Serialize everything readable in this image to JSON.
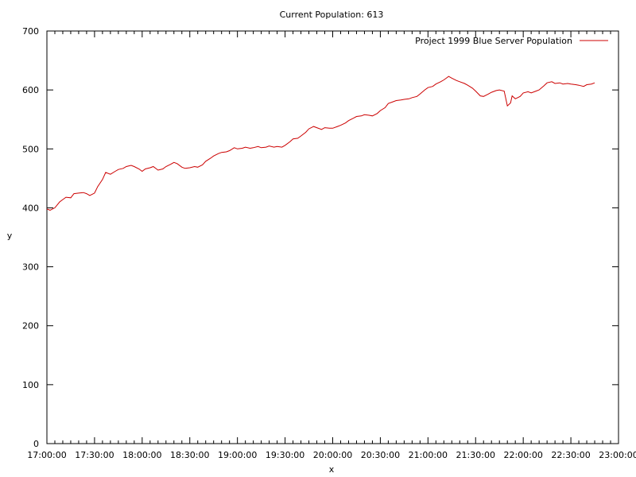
{
  "chart_data": {
    "type": "line",
    "title": "Current Population: 613",
    "xlabel": "x",
    "ylabel": "y",
    "xlim": [
      "17:00:00",
      "23:00:00"
    ],
    "ylim": [
      0,
      700
    ],
    "grid": false,
    "legend_position": "top-right",
    "line_color": "#cc0000",
    "x_tick_labels": [
      "17:00:00",
      "17:30:00",
      "18:00:00",
      "18:30:00",
      "19:00:00",
      "19:30:00",
      "20:00:00",
      "20:30:00",
      "21:00:00",
      "21:30:00",
      "22:00:00",
      "22:30:00",
      "23:00:00"
    ],
    "y_tick_labels": [
      "0",
      "100",
      "200",
      "300",
      "400",
      "500",
      "600",
      "700"
    ],
    "series": [
      {
        "name": "Project 1999 Blue Server Population",
        "points": [
          [
            "17:00:00",
            398
          ],
          [
            "17:02:00",
            396
          ],
          [
            "17:05:00",
            400
          ],
          [
            "17:08:00",
            410
          ],
          [
            "17:10:00",
            414
          ],
          [
            "17:12:00",
            418
          ],
          [
            "17:15:00",
            417
          ],
          [
            "17:17:00",
            424
          ],
          [
            "17:20:00",
            425
          ],
          [
            "17:23:00",
            426
          ],
          [
            "17:25:00",
            424
          ],
          [
            "17:27:00",
            421
          ],
          [
            "17:30:00",
            425
          ],
          [
            "17:32:00",
            436
          ],
          [
            "17:35:00",
            448
          ],
          [
            "17:37:00",
            460
          ],
          [
            "17:40:00",
            457
          ],
          [
            "17:43:00",
            462
          ],
          [
            "17:45:00",
            465
          ],
          [
            "17:48:00",
            467
          ],
          [
            "17:50:00",
            470
          ],
          [
            "17:53:00",
            472
          ],
          [
            "17:55:00",
            470
          ],
          [
            "17:58:00",
            466
          ],
          [
            "18:00:00",
            462
          ],
          [
            "18:02:00",
            466
          ],
          [
            "18:05:00",
            468
          ],
          [
            "18:07:00",
            470
          ],
          [
            "18:10:00",
            464
          ],
          [
            "18:13:00",
            466
          ],
          [
            "18:15:00",
            470
          ],
          [
            "18:18:00",
            474
          ],
          [
            "18:20:00",
            477
          ],
          [
            "18:22:00",
            475
          ],
          [
            "18:25:00",
            469
          ],
          [
            "18:27:00",
            467
          ],
          [
            "18:30:00",
            468
          ],
          [
            "18:33:00",
            470
          ],
          [
            "18:35:00",
            469
          ],
          [
            "18:38:00",
            473
          ],
          [
            "18:40:00",
            479
          ],
          [
            "18:43:00",
            484
          ],
          [
            "18:45:00",
            488
          ],
          [
            "18:48:00",
            492
          ],
          [
            "18:50:00",
            494
          ],
          [
            "18:53:00",
            495
          ],
          [
            "18:55:00",
            497
          ],
          [
            "18:58:00",
            502
          ],
          [
            "19:00:00",
            500
          ],
          [
            "19:03:00",
            501
          ],
          [
            "19:05:00",
            503
          ],
          [
            "19:08:00",
            501
          ],
          [
            "19:10:00",
            502
          ],
          [
            "19:13:00",
            504
          ],
          [
            "19:15:00",
            502
          ],
          [
            "19:18:00",
            503
          ],
          [
            "19:20:00",
            505
          ],
          [
            "19:23:00",
            503
          ],
          [
            "19:25:00",
            504
          ],
          [
            "19:28:00",
            503
          ],
          [
            "19:30:00",
            506
          ],
          [
            "19:33:00",
            512
          ],
          [
            "19:35:00",
            517
          ],
          [
            "19:38:00",
            518
          ],
          [
            "19:40:00",
            522
          ],
          [
            "19:43:00",
            528
          ],
          [
            "19:45:00",
            534
          ],
          [
            "19:48:00",
            538
          ],
          [
            "19:50:00",
            536
          ],
          [
            "19:53:00",
            533
          ],
          [
            "19:55:00",
            536
          ],
          [
            "19:58:00",
            535
          ],
          [
            "20:00:00",
            535
          ],
          [
            "20:03:00",
            538
          ],
          [
            "20:05:00",
            540
          ],
          [
            "20:08:00",
            544
          ],
          [
            "20:10:00",
            548
          ],
          [
            "20:13:00",
            552
          ],
          [
            "20:15:00",
            555
          ],
          [
            "20:18:00",
            556
          ],
          [
            "20:20:00",
            558
          ],
          [
            "20:23:00",
            557
          ],
          [
            "20:25:00",
            556
          ],
          [
            "20:28:00",
            560
          ],
          [
            "20:30:00",
            565
          ],
          [
            "20:33:00",
            570
          ],
          [
            "20:35:00",
            577
          ],
          [
            "20:38:00",
            580
          ],
          [
            "20:40:00",
            582
          ],
          [
            "20:43:00",
            583
          ],
          [
            "20:45:00",
            584
          ],
          [
            "20:48:00",
            585
          ],
          [
            "20:50:00",
            587
          ],
          [
            "20:53:00",
            589
          ],
          [
            "20:55:00",
            593
          ],
          [
            "20:58:00",
            600
          ],
          [
            "21:00:00",
            604
          ],
          [
            "21:03:00",
            606
          ],
          [
            "21:05:00",
            610
          ],
          [
            "21:08:00",
            614
          ],
          [
            "21:10:00",
            617
          ],
          [
            "21:12:00",
            621
          ],
          [
            "21:13:00",
            623
          ],
          [
            "21:15:00",
            620
          ],
          [
            "21:18:00",
            616
          ],
          [
            "21:20:00",
            614
          ],
          [
            "21:23:00",
            611
          ],
          [
            "21:25:00",
            608
          ],
          [
            "21:28:00",
            603
          ],
          [
            "21:30:00",
            598
          ],
          [
            "21:33:00",
            590
          ],
          [
            "21:35:00",
            589
          ],
          [
            "21:38:00",
            593
          ],
          [
            "21:40:00",
            596
          ],
          [
            "21:43:00",
            599
          ],
          [
            "21:45:00",
            600
          ],
          [
            "21:48:00",
            598
          ],
          [
            "21:50:00",
            573
          ],
          [
            "21:52:00",
            578
          ],
          [
            "21:53:00",
            590
          ],
          [
            "21:55:00",
            585
          ],
          [
            "21:58:00",
            589
          ],
          [
            "22:00:00",
            595
          ],
          [
            "22:03:00",
            597
          ],
          [
            "22:05:00",
            595
          ],
          [
            "22:08:00",
            598
          ],
          [
            "22:10:00",
            600
          ],
          [
            "22:13:00",
            607
          ],
          [
            "22:15:00",
            612
          ],
          [
            "22:18:00",
            614
          ],
          [
            "22:20:00",
            611
          ],
          [
            "22:23:00",
            612
          ],
          [
            "22:25:00",
            610
          ],
          [
            "22:28:00",
            611
          ],
          [
            "22:30:00",
            610
          ],
          [
            "22:33:00",
            609
          ],
          [
            "22:35:00",
            608
          ],
          [
            "22:38:00",
            606
          ],
          [
            "22:40:00",
            609
          ],
          [
            "22:43:00",
            610
          ],
          [
            "22:45:00",
            612
          ]
        ]
      }
    ]
  }
}
